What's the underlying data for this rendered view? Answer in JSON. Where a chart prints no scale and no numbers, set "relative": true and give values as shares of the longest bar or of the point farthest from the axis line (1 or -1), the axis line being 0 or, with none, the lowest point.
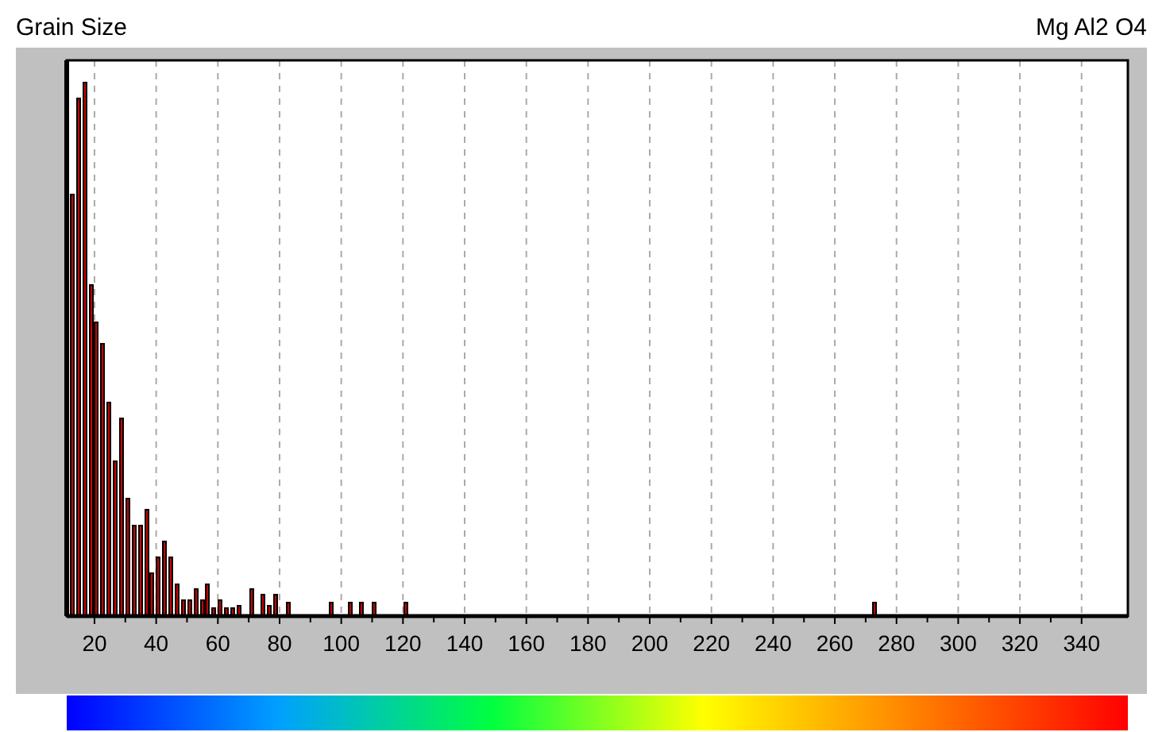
{
  "chart_data": {
    "type": "bar",
    "title": "Grain Size",
    "subtitle": "Mg Al2 O4",
    "relative": true,
    "color": "#cc0000",
    "grid": "x",
    "line_style": "dashed",
    "xlim": [
      11,
      355
    ],
    "xticks": [
      20,
      40,
      60,
      80,
      100,
      120,
      140,
      160,
      180,
      200,
      220,
      240,
      260,
      280,
      300,
      320,
      340
    ],
    "x": [
      13,
      15,
      17,
      19,
      21,
      23,
      25,
      27,
      29,
      31,
      33,
      35,
      37,
      39,
      41,
      43,
      45,
      47,
      49,
      51,
      53,
      55,
      57,
      59,
      61,
      63,
      65,
      67,
      69,
      71,
      73,
      75,
      77,
      79,
      81,
      83,
      85,
      87,
      89,
      91,
      93,
      95,
      97,
      99,
      101,
      103,
      105,
      107,
      109,
      111,
      113,
      115,
      117,
      119,
      121,
      123,
      125,
      127,
      129,
      131,
      133,
      135,
      137,
      139,
      141,
      143,
      145,
      147,
      149,
      151,
      153,
      155,
      157,
      159,
      161,
      163,
      165,
      167,
      169,
      171,
      173,
      175,
      177,
      179,
      181,
      183,
      185,
      187,
      189,
      191,
      193,
      195,
      197,
      199,
      201,
      203,
      205,
      207,
      209,
      211,
      213,
      215,
      217,
      219,
      221,
      223,
      225,
      227,
      229,
      231,
      233,
      235,
      237,
      239,
      241,
      243,
      245,
      247,
      249,
      251,
      253,
      255,
      257,
      259,
      261,
      263,
      265,
      267,
      269,
      271,
      273
    ],
    "values": [
      0.79,
      0.97,
      1,
      0.62,
      0.55,
      0.51,
      0.4,
      0.29,
      0.37,
      0.22,
      0.17,
      0.17,
      0.2,
      0.08,
      0.11,
      0.14,
      0.11,
      0.06,
      0.03,
      0.03,
      0.05,
      0.03,
      0.06,
      0.015,
      0.03,
      0.015,
      0.015,
      0.02,
      0,
      0.05,
      0,
      0.04,
      0.02,
      0.04,
      0,
      0.025,
      0,
      0,
      0,
      0,
      0,
      0,
      0.025,
      0,
      0,
      0.025,
      0,
      0.025,
      0,
      0.025,
      0,
      0,
      0,
      0,
      0.025,
      0,
      0,
      0,
      0,
      0,
      0,
      0,
      0,
      0,
      0,
      0,
      0,
      0,
      0,
      0,
      0,
      0,
      0,
      0,
      0,
      0,
      0,
      0,
      0,
      0,
      0,
      0,
      0,
      0,
      0,
      0,
      0,
      0,
      0,
      0,
      0,
      0,
      0,
      0,
      0,
      0,
      0,
      0,
      0,
      0,
      0,
      0,
      0,
      0,
      0,
      0,
      0,
      0,
      0,
      0,
      0,
      0,
      0,
      0,
      0,
      0,
      0,
      0,
      0,
      0,
      0,
      0,
      0,
      0,
      0,
      0,
      0,
      0,
      0,
      0,
      0.025
    ]
  }
}
